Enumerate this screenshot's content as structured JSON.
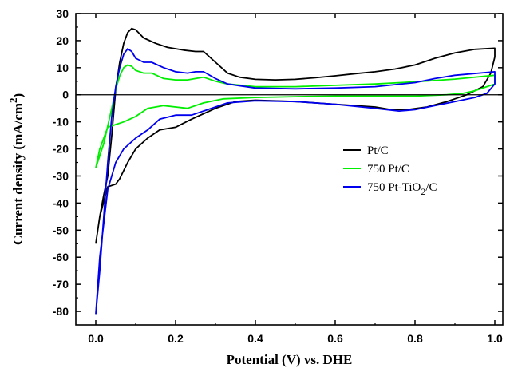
{
  "chart_data": {
    "type": "line",
    "xlabel": "Potential (V) vs. DHE",
    "ylabel_parts": [
      "Current density (mA/cm",
      "2",
      ")"
    ],
    "xlim": [
      -0.05,
      1.02
    ],
    "ylim": [
      -85,
      30
    ],
    "xticks": [
      0.0,
      0.2,
      0.4,
      0.6,
      0.8,
      1.0
    ],
    "xtick_labels": [
      "0.0",
      "0.2",
      "0.4",
      "0.6",
      "0.8",
      "1.0"
    ],
    "yticks": [
      30,
      20,
      10,
      0,
      -10,
      -20,
      -30,
      -40,
      -50,
      -60,
      -70,
      -80
    ],
    "ytick_labels": [
      "30",
      "20",
      "10",
      "0",
      "-10",
      "-20",
      "-30",
      "-40",
      "-50",
      "-60",
      "-70",
      "-80"
    ],
    "zero_line": true,
    "legend_position": "center-right",
    "series": [
      {
        "name": "Pt/C",
        "legend_parts": [
          "Pt/C"
        ],
        "color": "#000000",
        "points": [
          [
            0.0,
            -55
          ],
          [
            0.01,
            -45
          ],
          [
            0.02,
            -37
          ],
          [
            0.03,
            -30
          ],
          [
            0.04,
            -15
          ],
          [
            0.05,
            2
          ],
          [
            0.06,
            12
          ],
          [
            0.07,
            19
          ],
          [
            0.08,
            23
          ],
          [
            0.09,
            24.5
          ],
          [
            0.1,
            24
          ],
          [
            0.12,
            21
          ],
          [
            0.15,
            19
          ],
          [
            0.18,
            17.5
          ],
          [
            0.22,
            16.5
          ],
          [
            0.25,
            16
          ],
          [
            0.27,
            16
          ],
          [
            0.3,
            12
          ],
          [
            0.33,
            8
          ],
          [
            0.36,
            6.5
          ],
          [
            0.4,
            5.7
          ],
          [
            0.45,
            5.5
          ],
          [
            0.5,
            5.7
          ],
          [
            0.55,
            6.3
          ],
          [
            0.6,
            7
          ],
          [
            0.65,
            7.8
          ],
          [
            0.7,
            8.5
          ],
          [
            0.75,
            9.5
          ],
          [
            0.8,
            11
          ],
          [
            0.85,
            13.5
          ],
          [
            0.9,
            15.5
          ],
          [
            0.95,
            16.8
          ],
          [
            1.0,
            17.2
          ],
          [
            1.0,
            14
          ],
          [
            0.99,
            8
          ],
          [
            0.97,
            3
          ],
          [
            0.93,
            0
          ],
          [
            0.88,
            -2.5
          ],
          [
            0.83,
            -4.5
          ],
          [
            0.78,
            -5.5
          ],
          [
            0.74,
            -5.5
          ],
          [
            0.7,
            -4.5
          ],
          [
            0.6,
            -3.5
          ],
          [
            0.5,
            -2.5
          ],
          [
            0.4,
            -2
          ],
          [
            0.35,
            -2.5
          ],
          [
            0.3,
            -5
          ],
          [
            0.27,
            -7
          ],
          [
            0.24,
            -9
          ],
          [
            0.22,
            -10.5
          ],
          [
            0.2,
            -12
          ],
          [
            0.16,
            -13
          ],
          [
            0.13,
            -16
          ],
          [
            0.1,
            -20
          ],
          [
            0.08,
            -25
          ],
          [
            0.06,
            -31
          ],
          [
            0.05,
            -33
          ],
          [
            0.03,
            -34
          ],
          [
            0.01,
            -45
          ],
          [
            0.0,
            -55
          ]
        ]
      },
      {
        "name": "750 Pt/C",
        "legend_parts": [
          "750 Pt/C"
        ],
        "color": "#00ee00",
        "points": [
          [
            0.0,
            -27
          ],
          [
            0.02,
            -18
          ],
          [
            0.04,
            -5
          ],
          [
            0.05,
            2
          ],
          [
            0.06,
            7
          ],
          [
            0.07,
            10
          ],
          [
            0.08,
            11
          ],
          [
            0.09,
            10.5
          ],
          [
            0.1,
            9
          ],
          [
            0.12,
            8
          ],
          [
            0.14,
            8
          ],
          [
            0.17,
            6
          ],
          [
            0.2,
            5.5
          ],
          [
            0.23,
            5.5
          ],
          [
            0.25,
            6
          ],
          [
            0.27,
            6.5
          ],
          [
            0.3,
            5
          ],
          [
            0.33,
            4
          ],
          [
            0.4,
            3
          ],
          [
            0.5,
            3
          ],
          [
            0.6,
            3.5
          ],
          [
            0.7,
            4
          ],
          [
            0.8,
            4.8
          ],
          [
            0.9,
            5.8
          ],
          [
            1.0,
            7.2
          ],
          [
            1.0,
            4
          ],
          [
            0.98,
            3
          ],
          [
            0.95,
            1.5
          ],
          [
            0.92,
            0.5
          ],
          [
            0.88,
            0
          ],
          [
            0.8,
            -0.5
          ],
          [
            0.7,
            -0.5
          ],
          [
            0.6,
            -0.5
          ],
          [
            0.5,
            -0.7
          ],
          [
            0.4,
            -1
          ],
          [
            0.32,
            -1.5
          ],
          [
            0.27,
            -3
          ],
          [
            0.23,
            -5
          ],
          [
            0.2,
            -4.5
          ],
          [
            0.17,
            -4
          ],
          [
            0.13,
            -5
          ],
          [
            0.1,
            -8
          ],
          [
            0.07,
            -10
          ],
          [
            0.05,
            -11
          ],
          [
            0.03,
            -12
          ],
          [
            0.01,
            -20
          ],
          [
            0.0,
            -27
          ]
        ]
      },
      {
        "name": "750 Pt-TiO2/C",
        "legend_parts": [
          "750 Pt-TiO",
          "2",
          "/C"
        ],
        "color": "#0000ee",
        "points": [
          [
            0.0,
            -81
          ],
          [
            0.01,
            -65
          ],
          [
            0.02,
            -45
          ],
          [
            0.03,
            -25
          ],
          [
            0.04,
            -8
          ],
          [
            0.05,
            3
          ],
          [
            0.06,
            10
          ],
          [
            0.07,
            15
          ],
          [
            0.08,
            17
          ],
          [
            0.09,
            16
          ],
          [
            0.1,
            13.5
          ],
          [
            0.12,
            12
          ],
          [
            0.14,
            12
          ],
          [
            0.17,
            10
          ],
          [
            0.2,
            8.5
          ],
          [
            0.23,
            8
          ],
          [
            0.25,
            8.5
          ],
          [
            0.27,
            8.5
          ],
          [
            0.3,
            6
          ],
          [
            0.33,
            4
          ],
          [
            0.4,
            2.5
          ],
          [
            0.5,
            2.2
          ],
          [
            0.6,
            2.5
          ],
          [
            0.7,
            3
          ],
          [
            0.8,
            4.5
          ],
          [
            0.85,
            6
          ],
          [
            0.9,
            7.2
          ],
          [
            1.0,
            8.5
          ],
          [
            1.0,
            4
          ],
          [
            0.98,
            0.5
          ],
          [
            0.95,
            -1
          ],
          [
            0.9,
            -2.5
          ],
          [
            0.85,
            -4
          ],
          [
            0.8,
            -5.5
          ],
          [
            0.76,
            -6
          ],
          [
            0.7,
            -5
          ],
          [
            0.6,
            -3.5
          ],
          [
            0.5,
            -2.5
          ],
          [
            0.4,
            -2.2
          ],
          [
            0.33,
            -3
          ],
          [
            0.27,
            -6
          ],
          [
            0.24,
            -7.5
          ],
          [
            0.2,
            -7.5
          ],
          [
            0.16,
            -9
          ],
          [
            0.13,
            -13
          ],
          [
            0.1,
            -16
          ],
          [
            0.07,
            -20
          ],
          [
            0.05,
            -25
          ],
          [
            0.03,
            -35
          ],
          [
            0.01,
            -60
          ],
          [
            0.0,
            -81
          ]
        ]
      }
    ]
  }
}
